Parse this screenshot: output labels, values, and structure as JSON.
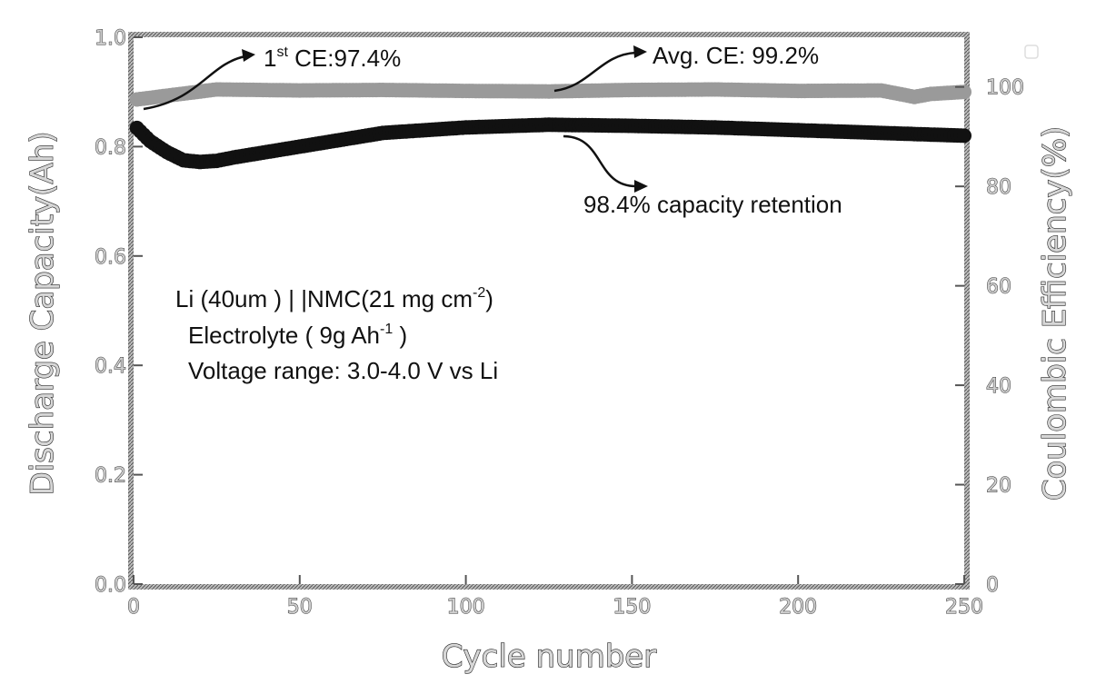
{
  "chart_data": {
    "type": "scatter",
    "xlabel": "Cycle number",
    "ylabel": "Discharge Capacity(Ah)",
    "y2label": "Coulombic Efficiency(%)",
    "xlim": [
      0,
      250
    ],
    "ylim": [
      0.0,
      1.0
    ],
    "y2lim": [
      0,
      110
    ],
    "xticks": [
      "0",
      "50",
      "100",
      "150",
      "200",
      "250"
    ],
    "yticks": [
      "0.0",
      "0.2",
      "0.4",
      "0.6",
      "0.8",
      "1.0"
    ],
    "y2ticks": [
      "0",
      "20",
      "40",
      "60",
      "80",
      "100"
    ],
    "grid": false,
    "series": [
      {
        "axis": "left",
        "color": "#111111",
        "x": [
          0,
          5,
          10,
          15,
          20,
          25,
          30,
          40,
          50,
          60,
          75,
          100,
          125,
          150,
          175,
          200,
          225,
          250
        ],
        "values": [
          0.84,
          0.81,
          0.79,
          0.775,
          0.772,
          0.774,
          0.78,
          0.79,
          0.8,
          0.81,
          0.825,
          0.835,
          0.84,
          0.838,
          0.835,
          0.83,
          0.825,
          0.82
        ]
      },
      {
        "axis": "right",
        "color": "#9a9a9a",
        "x": [
          0,
          25,
          50,
          75,
          100,
          125,
          150,
          175,
          200,
          225,
          235,
          240,
          250
        ],
        "values": [
          97.4,
          99.5,
          99.3,
          99.4,
          99.2,
          99.1,
          99.4,
          99.5,
          99.2,
          99.3,
          98.0,
          98.6,
          99.0
        ]
      }
    ],
    "annotations": {
      "first_ce_base": "1",
      "first_ce_sup": "st",
      "first_ce_rest": " CE:97.4%",
      "avg_ce": "Avg. CE: 99.2%",
      "retention": "98.4% capacity retention",
      "cell_line1_a": "Li (40um ) | |NMC(21 mg cm",
      "cell_line1_sup": "-2",
      "cell_line1_b": ")",
      "cell_line2_a": "Electrolyte ( 9g Ah",
      "cell_line2_sup": "-1",
      "cell_line2_b": " )",
      "cell_line3": "Voltage range: 3.0-4.0 V vs Li"
    }
  }
}
